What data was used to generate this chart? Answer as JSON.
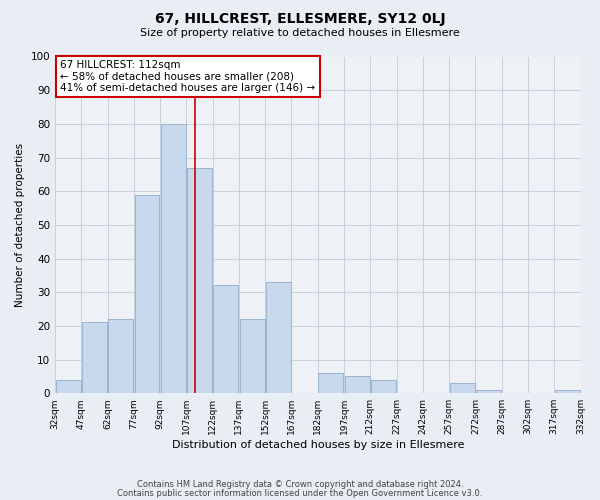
{
  "title": "67, HILLCREST, ELLESMERE, SY12 0LJ",
  "subtitle": "Size of property relative to detached houses in Ellesmere",
  "xlabel": "Distribution of detached houses by size in Ellesmere",
  "ylabel": "Number of detached properties",
  "bar_color": "#c8d8ed",
  "bar_edgecolor": "#9ab4d0",
  "vline_value": 112,
  "vline_color": "#cc0000",
  "annotation_title": "67 HILLCREST: 112sqm",
  "annotation_line1": "← 58% of detached houses are smaller (208)",
  "annotation_line2": "41% of semi-detached houses are larger (146) →",
  "annotation_box_edgecolor": "#cc0000",
  "background_color": "#e8eef4",
  "plot_background": "#eef2f7",
  "grid_color": "#c0ccd8",
  "ylim": [
    0,
    100
  ],
  "yticks": [
    0,
    10,
    20,
    30,
    40,
    50,
    60,
    70,
    80,
    90,
    100
  ],
  "bin_edges": [
    32,
    47,
    62,
    77,
    92,
    107,
    122,
    137,
    152,
    167,
    182,
    197,
    212,
    227,
    242,
    257,
    272,
    287,
    302,
    317,
    332
  ],
  "bar_heights": [
    4,
    21,
    22,
    59,
    80,
    67,
    32,
    22,
    33,
    0,
    6,
    5,
    4,
    0,
    0,
    3,
    1,
    0,
    0,
    1
  ],
  "footer_line1": "Contains HM Land Registry data © Crown copyright and database right 2024.",
  "footer_line2": "Contains public sector information licensed under the Open Government Licence v3.0."
}
